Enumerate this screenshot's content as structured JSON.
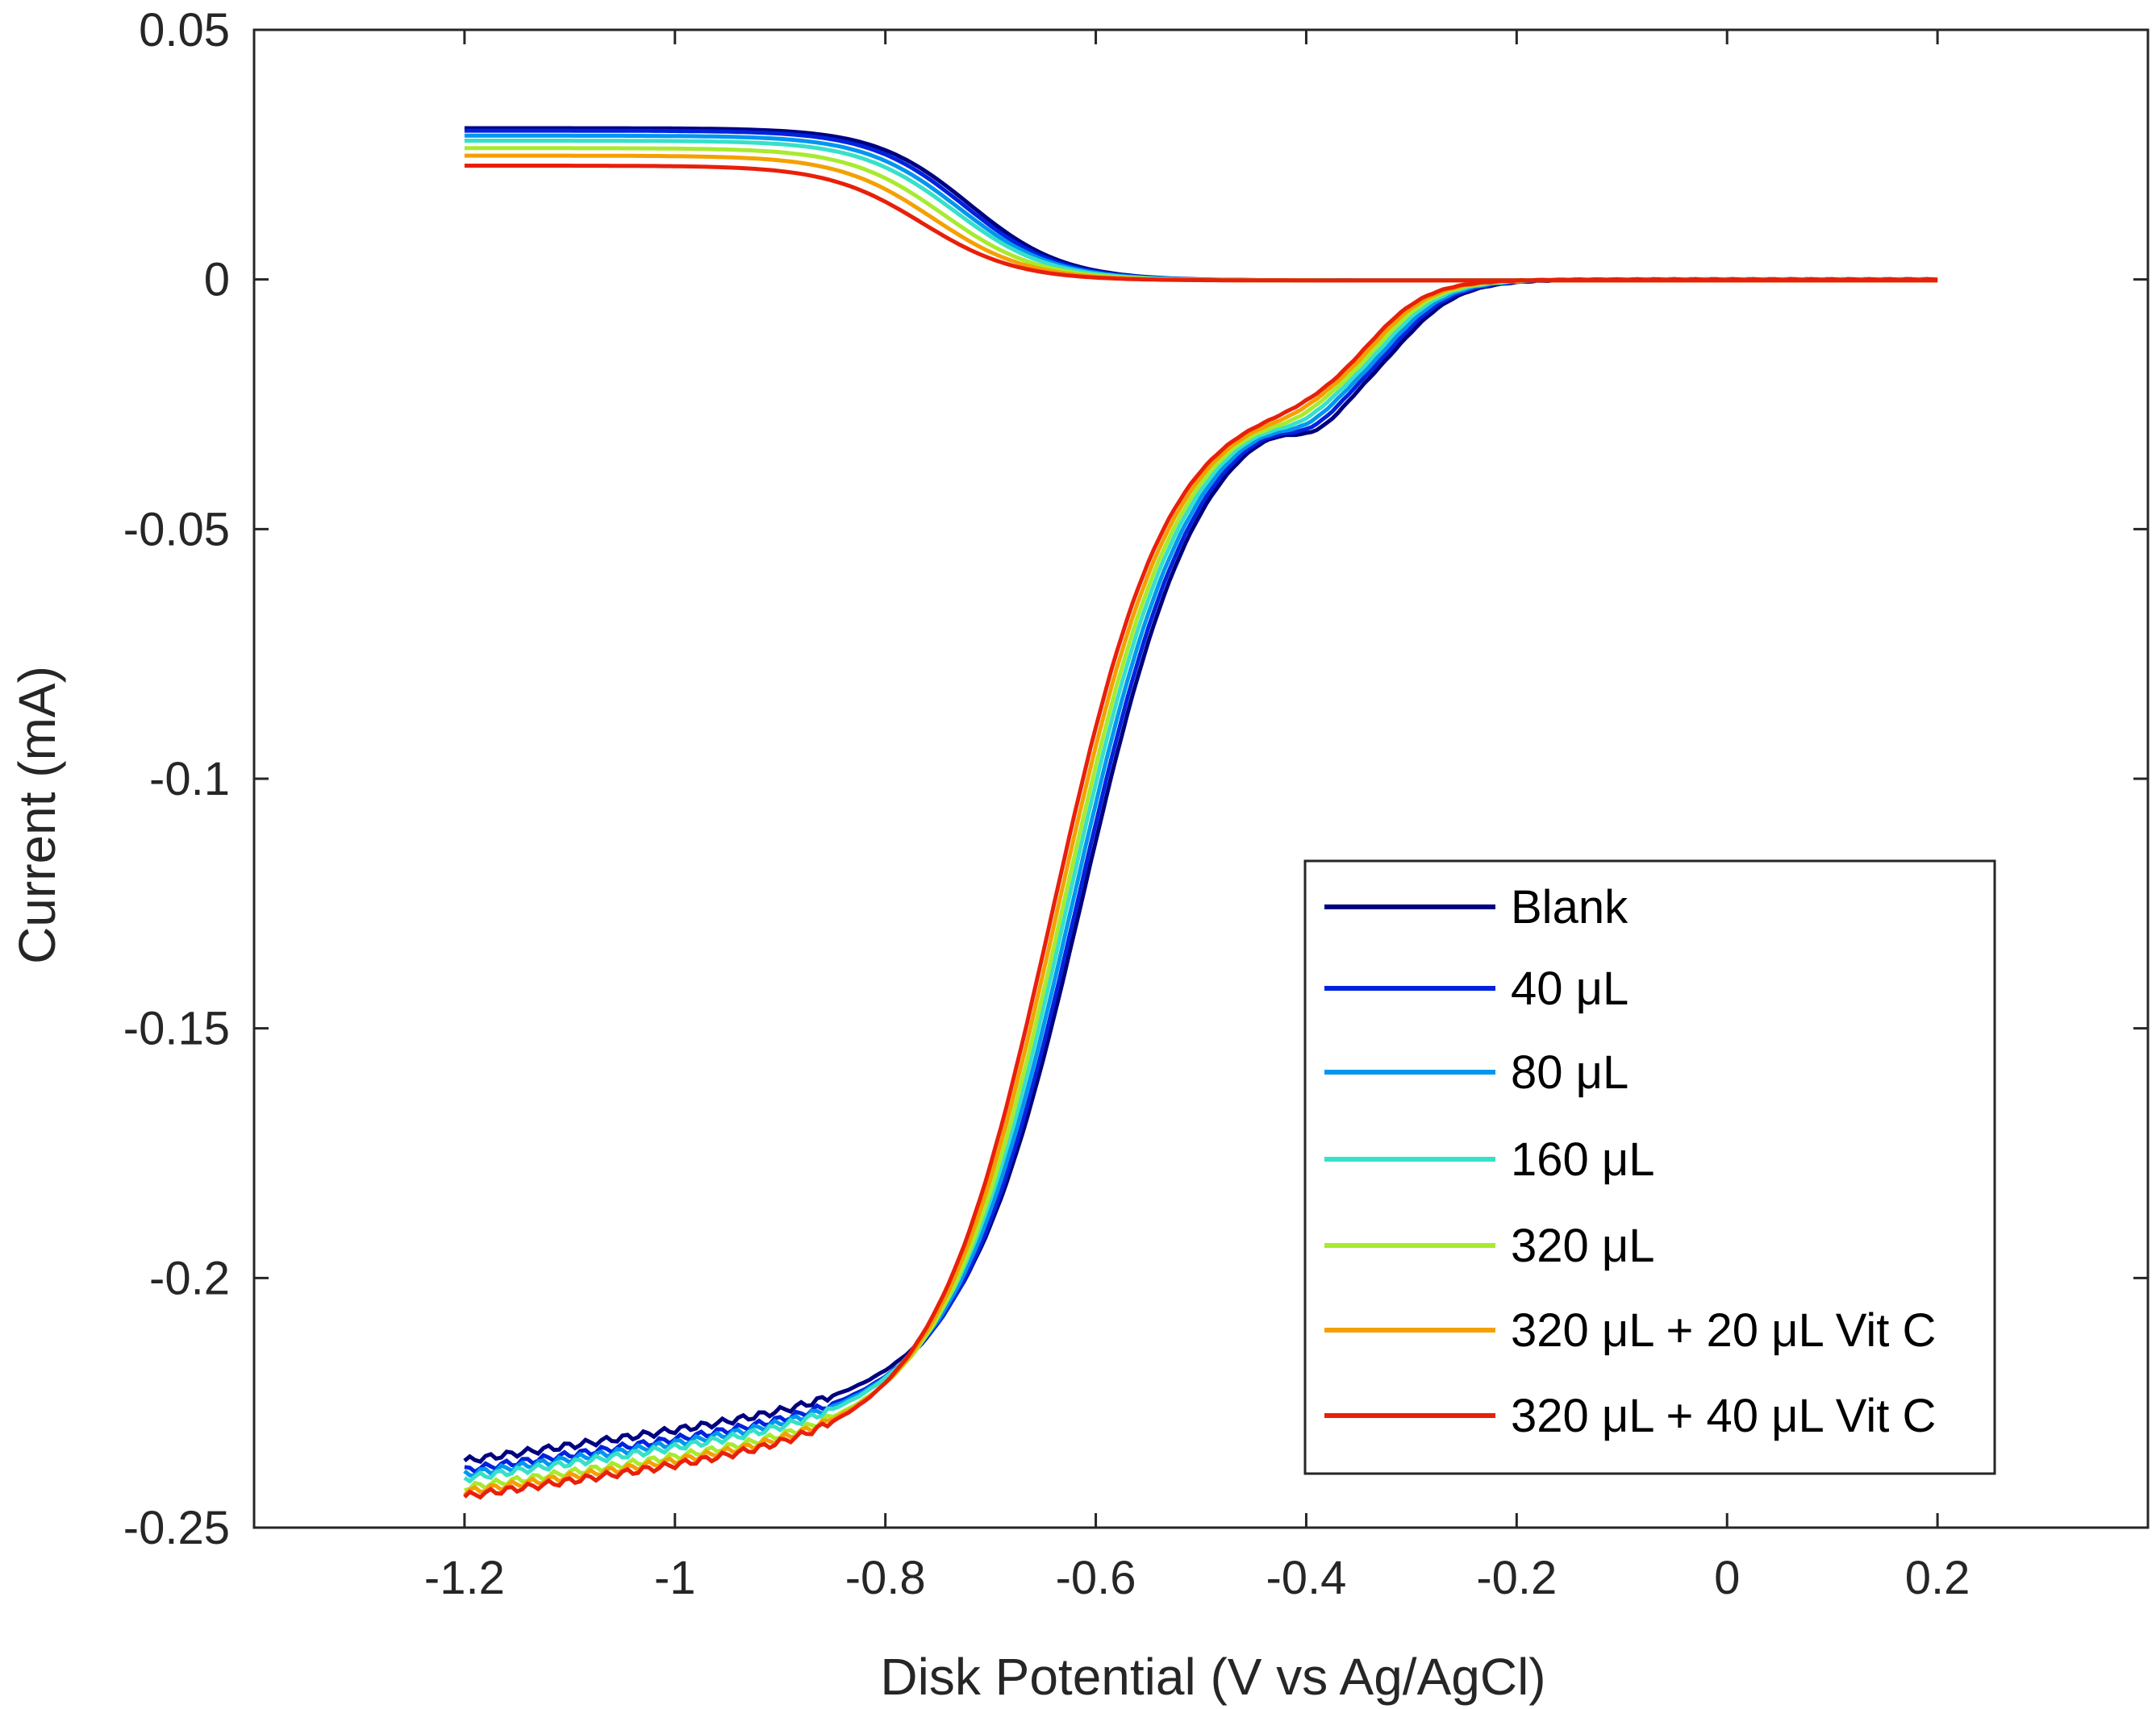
{
  "chart_data": {
    "type": "line",
    "title": "",
    "xlabel": "Disk Potential (V vs Ag/AgCl)",
    "ylabel": "Current (mA)",
    "xlim": [
      -1.4,
      0.4
    ],
    "ylim": [
      -0.25,
      0.05
    ],
    "xticks": [
      -1.2,
      -1.0,
      -0.8,
      -0.6,
      -0.4,
      -0.2,
      0,
      0.2
    ],
    "xtick_labels": [
      "-1.2",
      "-1",
      "-0.8",
      "-0.6",
      "-0.4",
      "-0.2",
      "0",
      "0.2"
    ],
    "yticks": [
      0.05,
      0,
      -0.05,
      -0.1,
      -0.15,
      -0.2,
      -0.25
    ],
    "ytick_labels": [
      "0.05",
      "0",
      "-0.05",
      "-0.1",
      "-0.15",
      "-0.2",
      "-0.25"
    ],
    "grid": false,
    "legend_position": "lower-right",
    "series": [
      {
        "name": "Blank",
        "color": "#00007f",
        "x_shift": 0.02,
        "ring_plateau": 0.0305,
        "ring_half": -0.72,
        "disk_start": -0.212,
        "disk_bump": 1.0
      },
      {
        "name": "40 μL",
        "color": "#0022dd",
        "x_shift": 0.015,
        "ring_plateau": 0.03,
        "ring_half": -0.725,
        "disk_start": -0.214,
        "disk_bump": 0.85
      },
      {
        "name": "80 μL",
        "color": "#0096f0",
        "x_shift": 0.01,
        "ring_plateau": 0.029,
        "ring_half": -0.73,
        "disk_start": -0.215,
        "disk_bump": 0.7
      },
      {
        "name": "160 μL",
        "color": "#38e0c8",
        "x_shift": 0.005,
        "ring_plateau": 0.028,
        "ring_half": -0.735,
        "disk_start": -0.216,
        "disk_bump": 0.55
      },
      {
        "name": "320 μL",
        "color": "#a8ea30",
        "x_shift": 0.0,
        "ring_plateau": 0.0265,
        "ring_half": -0.745,
        "disk_start": -0.218,
        "disk_bump": 0.4
      },
      {
        "name": "320 μL + 20 μL Vit C",
        "color": "#f5a000",
        "x_shift": -0.005,
        "ring_plateau": 0.025,
        "ring_half": -0.755,
        "disk_start": -0.219,
        "disk_bump": 0.25
      },
      {
        "name": "320 μL + 40 μL Vit C",
        "color": "#e8200a",
        "x_shift": -0.01,
        "ring_plateau": 0.023,
        "ring_half": -0.765,
        "disk_start": -0.22,
        "disk_bump": 0.1
      }
    ]
  }
}
